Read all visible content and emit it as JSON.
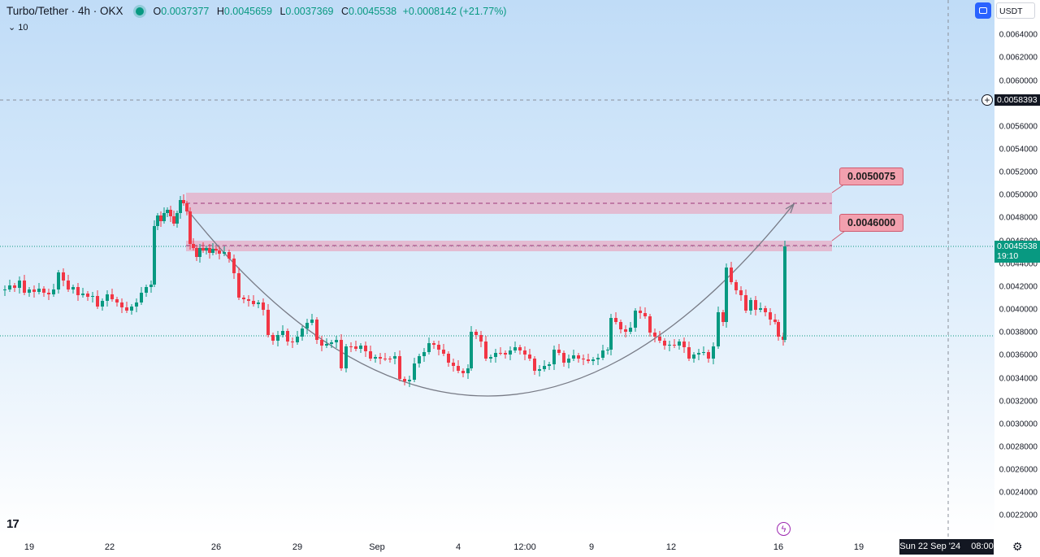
{
  "header": {
    "symbol": "Turbo/Tether · 4h · OKX",
    "ohlc": [
      {
        "label": "O",
        "value": "0.0037377"
      },
      {
        "label": "H",
        "value": "0.0045659"
      },
      {
        "label": "L",
        "value": "0.0037369"
      },
      {
        "label": "C",
        "value": "0.0045538"
      }
    ],
    "change": "+0.0008142 (+21.77%)",
    "volume_row": "10",
    "currency": "USDT"
  },
  "price_axis": {
    "ticks": [
      "0.0064000",
      "0.0062000",
      "0.0060000",
      "0.0056000",
      "0.0054000",
      "0.0052000",
      "0.0050000",
      "0.0048000",
      "0.0046000",
      "0.0044000",
      "0.0042000",
      "0.0040000",
      "0.0038000",
      "0.0036000",
      "0.0034000",
      "0.0032000",
      "0.0030000",
      "0.0028000",
      "0.0026000",
      "0.0024000",
      "0.0022000"
    ],
    "crosshair_price": "0.0058393",
    "last_price": "0.0045538",
    "countdown": "19:10"
  },
  "time_axis": {
    "ticks": [
      "19",
      "22",
      "26",
      "29",
      "Sep",
      "4",
      "12:00",
      "9",
      "12",
      "16",
      "19"
    ],
    "crosshair_date": "Sun 22 Sep '24",
    "crosshair_time": "08:00"
  },
  "annotations": {
    "upper_target": "0.0050075",
    "lower_target": "0.0046000"
  },
  "colors": {
    "up": "#089981",
    "down": "#f23645",
    "zone": "#e8a8c0",
    "arc": "#787b86"
  },
  "icons": [
    "tradingview-logo-icon",
    "lightning-icon",
    "settings-gear-icon",
    "plus-circle-icon",
    "chart-toggle-icon"
  ]
}
